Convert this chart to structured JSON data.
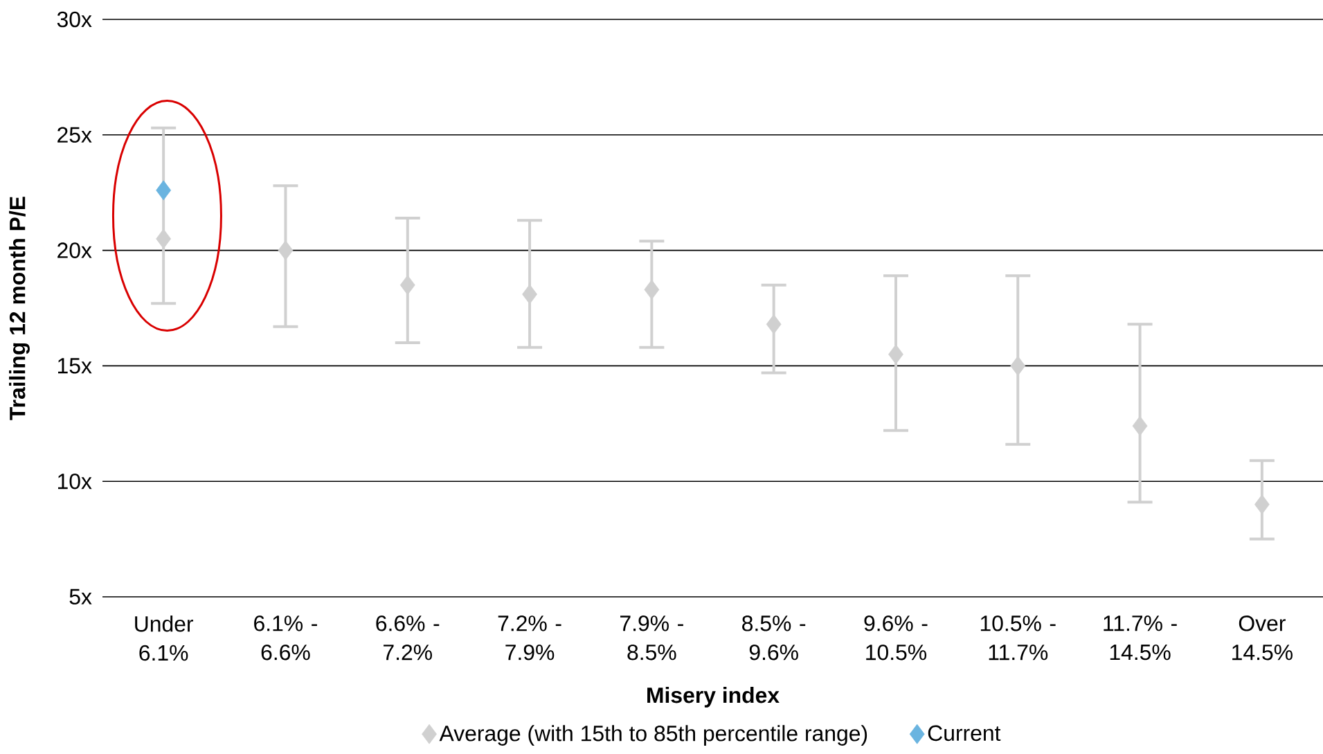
{
  "chart_data": {
    "type": "scatter",
    "xlabel": "Misery index",
    "ylabel": "Trailing 12 month P/E",
    "categories": [
      "Under 6.1%",
      "6.1% - 6.6%",
      "6.6% - 7.2%",
      "7.2% - 7.9%",
      "7.9% - 8.5%",
      "8.5% - 9.6%",
      "9.6% - 10.5%",
      "10.5% - 11.7%",
      "11.7% - 14.5%",
      "Over 14.5%"
    ],
    "series": [
      {
        "name": "Average (with 15th to 85th percentile range)",
        "color": "#d0d0d0",
        "values": [
          20.5,
          20.0,
          18.5,
          18.1,
          18.3,
          16.8,
          15.5,
          15.0,
          12.4,
          9.0
        ],
        "errors": [
          [
            17.7,
            25.3
          ],
          [
            16.7,
            22.8
          ],
          [
            16.0,
            21.4
          ],
          [
            15.8,
            21.3
          ],
          [
            15.8,
            20.4
          ],
          [
            14.7,
            18.5
          ],
          [
            12.2,
            18.9
          ],
          [
            11.6,
            18.9
          ],
          [
            9.1,
            16.8
          ],
          [
            7.5,
            10.9
          ]
        ]
      },
      {
        "name": "Current",
        "color": "#6ab4e0",
        "values": [
          22.6,
          null,
          null,
          null,
          null,
          null,
          null,
          null,
          null,
          null
        ]
      }
    ],
    "ylim": [
      5,
      30
    ],
    "yticks": [
      {
        "value": 5,
        "label": "5x"
      },
      {
        "value": 10,
        "label": "10x"
      },
      {
        "value": 15,
        "label": "15x"
      },
      {
        "value": 20,
        "label": "20x"
      },
      {
        "value": 25,
        "label": "25x"
      },
      {
        "value": 30,
        "label": "30x"
      }
    ],
    "grid": "y",
    "legend": "bottom",
    "marker": "diamond"
  }
}
